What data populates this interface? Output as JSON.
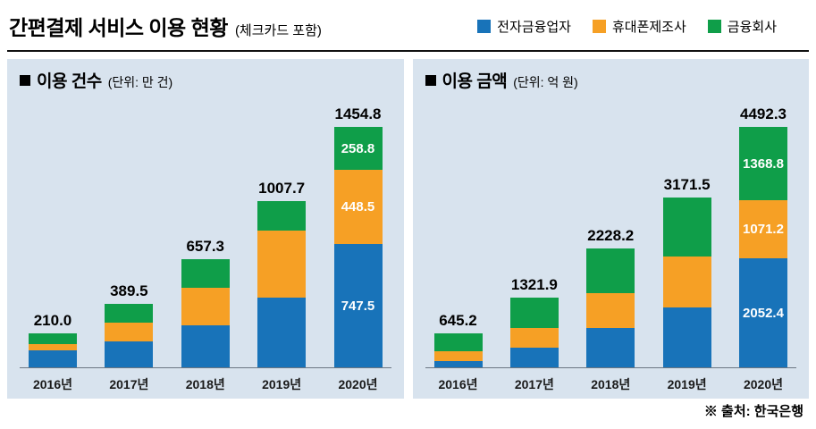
{
  "header": {
    "title": "간편결제 서비스 이용 현황",
    "subtitle": "(체크카드 포함)",
    "legend": [
      {
        "label": "전자금융업자",
        "color": "#1873b9"
      },
      {
        "label": "휴대폰제조사",
        "color": "#f6a025"
      },
      {
        "label": "금융회사",
        "color": "#0f9e49"
      }
    ]
  },
  "footer": {
    "source": "※ 출처: 한국은행"
  },
  "chart_data": [
    {
      "type": "bar",
      "stacked": true,
      "title": "이용 건수",
      "unit": "(단위: 만 건)",
      "categories": [
        "2016년",
        "2017년",
        "2018년",
        "2019년",
        "2020년"
      ],
      "totals": [
        210.0,
        389.5,
        657.3,
        1007.7,
        1454.8
      ],
      "total_labels": [
        "210.0",
        "389.5",
        "657.3",
        "1007.7",
        "1454.8"
      ],
      "series": [
        {
          "name": "전자금융업자",
          "color": "#1873b9",
          "values": [
            110.0,
            160.0,
            256.0,
            426.0,
            747.5
          ]
        },
        {
          "name": "휴대폰제조사",
          "color": "#f6a025",
          "values": [
            35.0,
            115.0,
            230.0,
            406.0,
            448.5
          ]
        },
        {
          "name": "금융회사",
          "color": "#0f9e49",
          "values": [
            65.0,
            114.5,
            171.3,
            175.7,
            258.8
          ]
        }
      ],
      "segment_labels": [
        null,
        null,
        null,
        null,
        [
          "747.5",
          "448.5",
          "258.8"
        ]
      ],
      "ylim": [
        0,
        1500
      ],
      "grid": false,
      "legend_position": "top-right-shared"
    },
    {
      "type": "bar",
      "stacked": true,
      "title": "이용 금액",
      "unit": "(단위: 억 원)",
      "categories": [
        "2016년",
        "2017년",
        "2018년",
        "2019년",
        "2020년"
      ],
      "totals": [
        645.2,
        1321.9,
        2228.2,
        3171.5,
        4492.3
      ],
      "total_labels": [
        "645.2",
        "1321.9",
        "2228.2",
        "3171.5",
        "4492.3"
      ],
      "series": [
        {
          "name": "전자금융업자",
          "color": "#1873b9",
          "values": [
            124.0,
            390.0,
            743.0,
            1130.0,
            2052.4
          ]
        },
        {
          "name": "휴대폰제조사",
          "color": "#f6a025",
          "values": [
            186.0,
            355.0,
            650.0,
            958.0,
            1071.2
          ]
        },
        {
          "name": "금융회사",
          "color": "#0f9e49",
          "values": [
            335.2,
            576.9,
            835.2,
            1083.5,
            1368.8
          ]
        }
      ],
      "segment_labels": [
        null,
        null,
        null,
        null,
        [
          "2052.4",
          "1071.2",
          "1368.8"
        ]
      ],
      "ylim": [
        0,
        4500
      ],
      "grid": false,
      "legend_position": "top-right-shared"
    }
  ]
}
